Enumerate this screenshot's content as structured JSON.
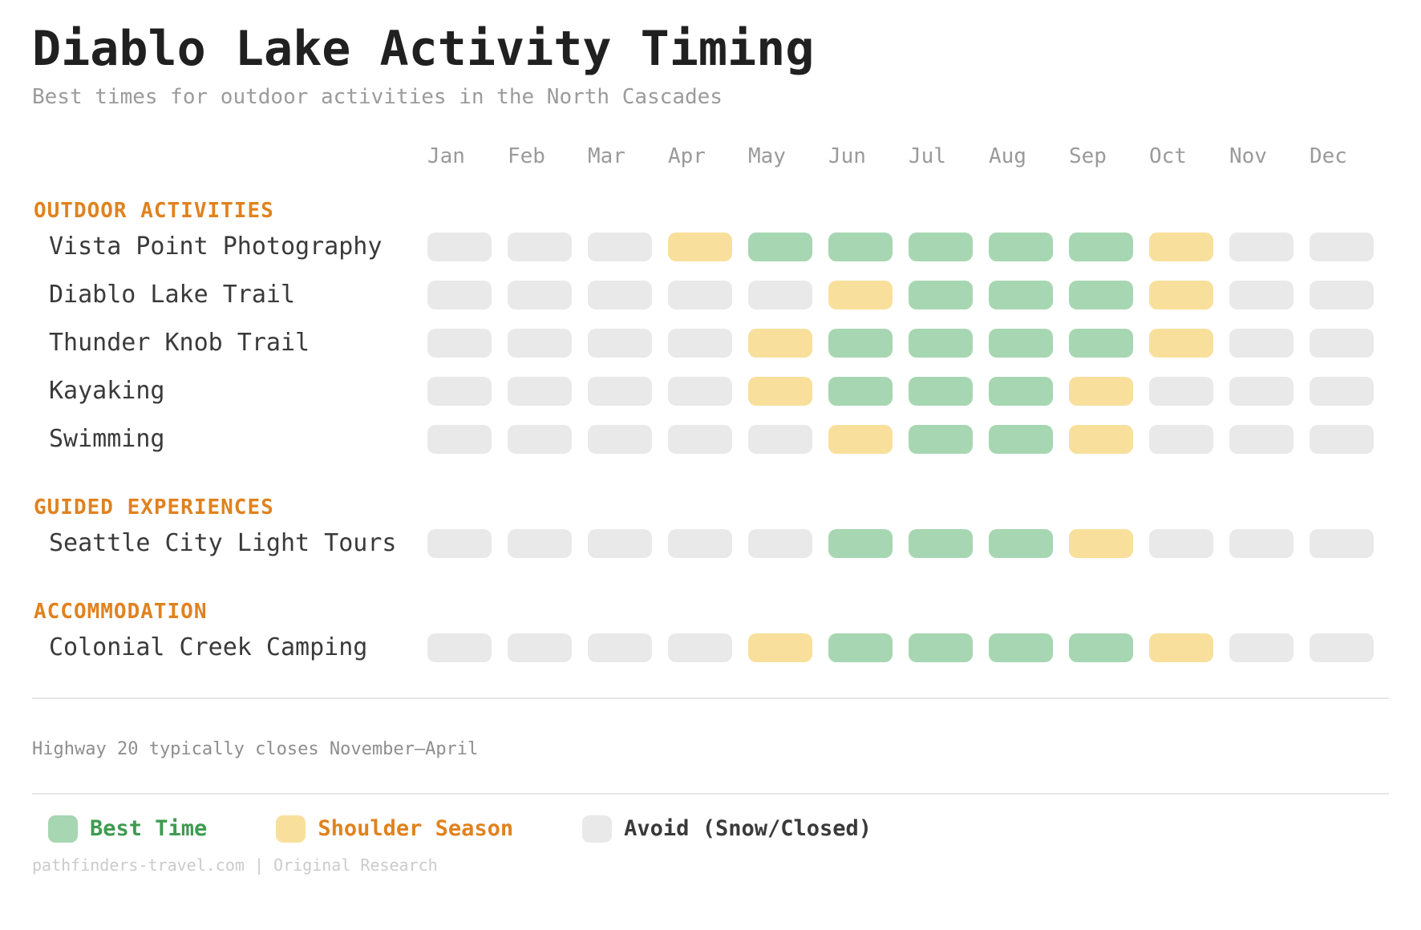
{
  "colors": {
    "best": "#a7d6b2",
    "shoulder": "#f8e09c",
    "avoid": "#e9e9e9",
    "section_header": "#e0821f",
    "legend_text": {
      "best": "#3f9b51",
      "shoulder": "#e0821f",
      "avoid": "#3a3a3a"
    }
  },
  "chart_data": {
    "type": "heatmap",
    "title": "Diablo Lake Activity Timing",
    "subtitle": "Best times for outdoor activities in the North Cascades",
    "columns": [
      "Jan",
      "Feb",
      "Mar",
      "Apr",
      "May",
      "Jun",
      "Jul",
      "Aug",
      "Sep",
      "Oct",
      "Nov",
      "Dec"
    ],
    "status_levels": [
      "best",
      "shoulder",
      "avoid"
    ],
    "sections": [
      {
        "label": "OUTDOOR ACTIVITIES",
        "rows": [
          {
            "label": "Vista Point Photography",
            "values": [
              "avoid",
              "avoid",
              "avoid",
              "shoulder",
              "best",
              "best",
              "best",
              "best",
              "best",
              "shoulder",
              "avoid",
              "avoid"
            ]
          },
          {
            "label": "Diablo Lake Trail",
            "values": [
              "avoid",
              "avoid",
              "avoid",
              "avoid",
              "avoid",
              "shoulder",
              "best",
              "best",
              "best",
              "shoulder",
              "avoid",
              "avoid"
            ]
          },
          {
            "label": "Thunder Knob Trail",
            "values": [
              "avoid",
              "avoid",
              "avoid",
              "avoid",
              "shoulder",
              "best",
              "best",
              "best",
              "best",
              "shoulder",
              "avoid",
              "avoid"
            ]
          },
          {
            "label": "Kayaking",
            "values": [
              "avoid",
              "avoid",
              "avoid",
              "avoid",
              "shoulder",
              "best",
              "best",
              "best",
              "shoulder",
              "avoid",
              "avoid",
              "avoid"
            ]
          },
          {
            "label": "Swimming",
            "values": [
              "avoid",
              "avoid",
              "avoid",
              "avoid",
              "avoid",
              "shoulder",
              "best",
              "best",
              "shoulder",
              "avoid",
              "avoid",
              "avoid"
            ]
          }
        ]
      },
      {
        "label": "GUIDED EXPERIENCES",
        "rows": [
          {
            "label": "Seattle City Light Tours",
            "values": [
              "avoid",
              "avoid",
              "avoid",
              "avoid",
              "avoid",
              "best",
              "best",
              "best",
              "shoulder",
              "avoid",
              "avoid",
              "avoid"
            ]
          }
        ]
      },
      {
        "label": "ACCOMMODATION",
        "rows": [
          {
            "label": "Colonial Creek Camping",
            "values": [
              "avoid",
              "avoid",
              "avoid",
              "avoid",
              "shoulder",
              "best",
              "best",
              "best",
              "best",
              "shoulder",
              "avoid",
              "avoid"
            ]
          }
        ]
      }
    ],
    "note": "Highway 20 typically closes November—April",
    "legend": [
      {
        "label": "Best Time",
        "status": "best"
      },
      {
        "label": "Shoulder Season",
        "status": "shoulder"
      },
      {
        "label": "Avoid (Snow/Closed)",
        "status": "avoid"
      }
    ],
    "footer": "pathfinders-travel.com | Original Research"
  }
}
